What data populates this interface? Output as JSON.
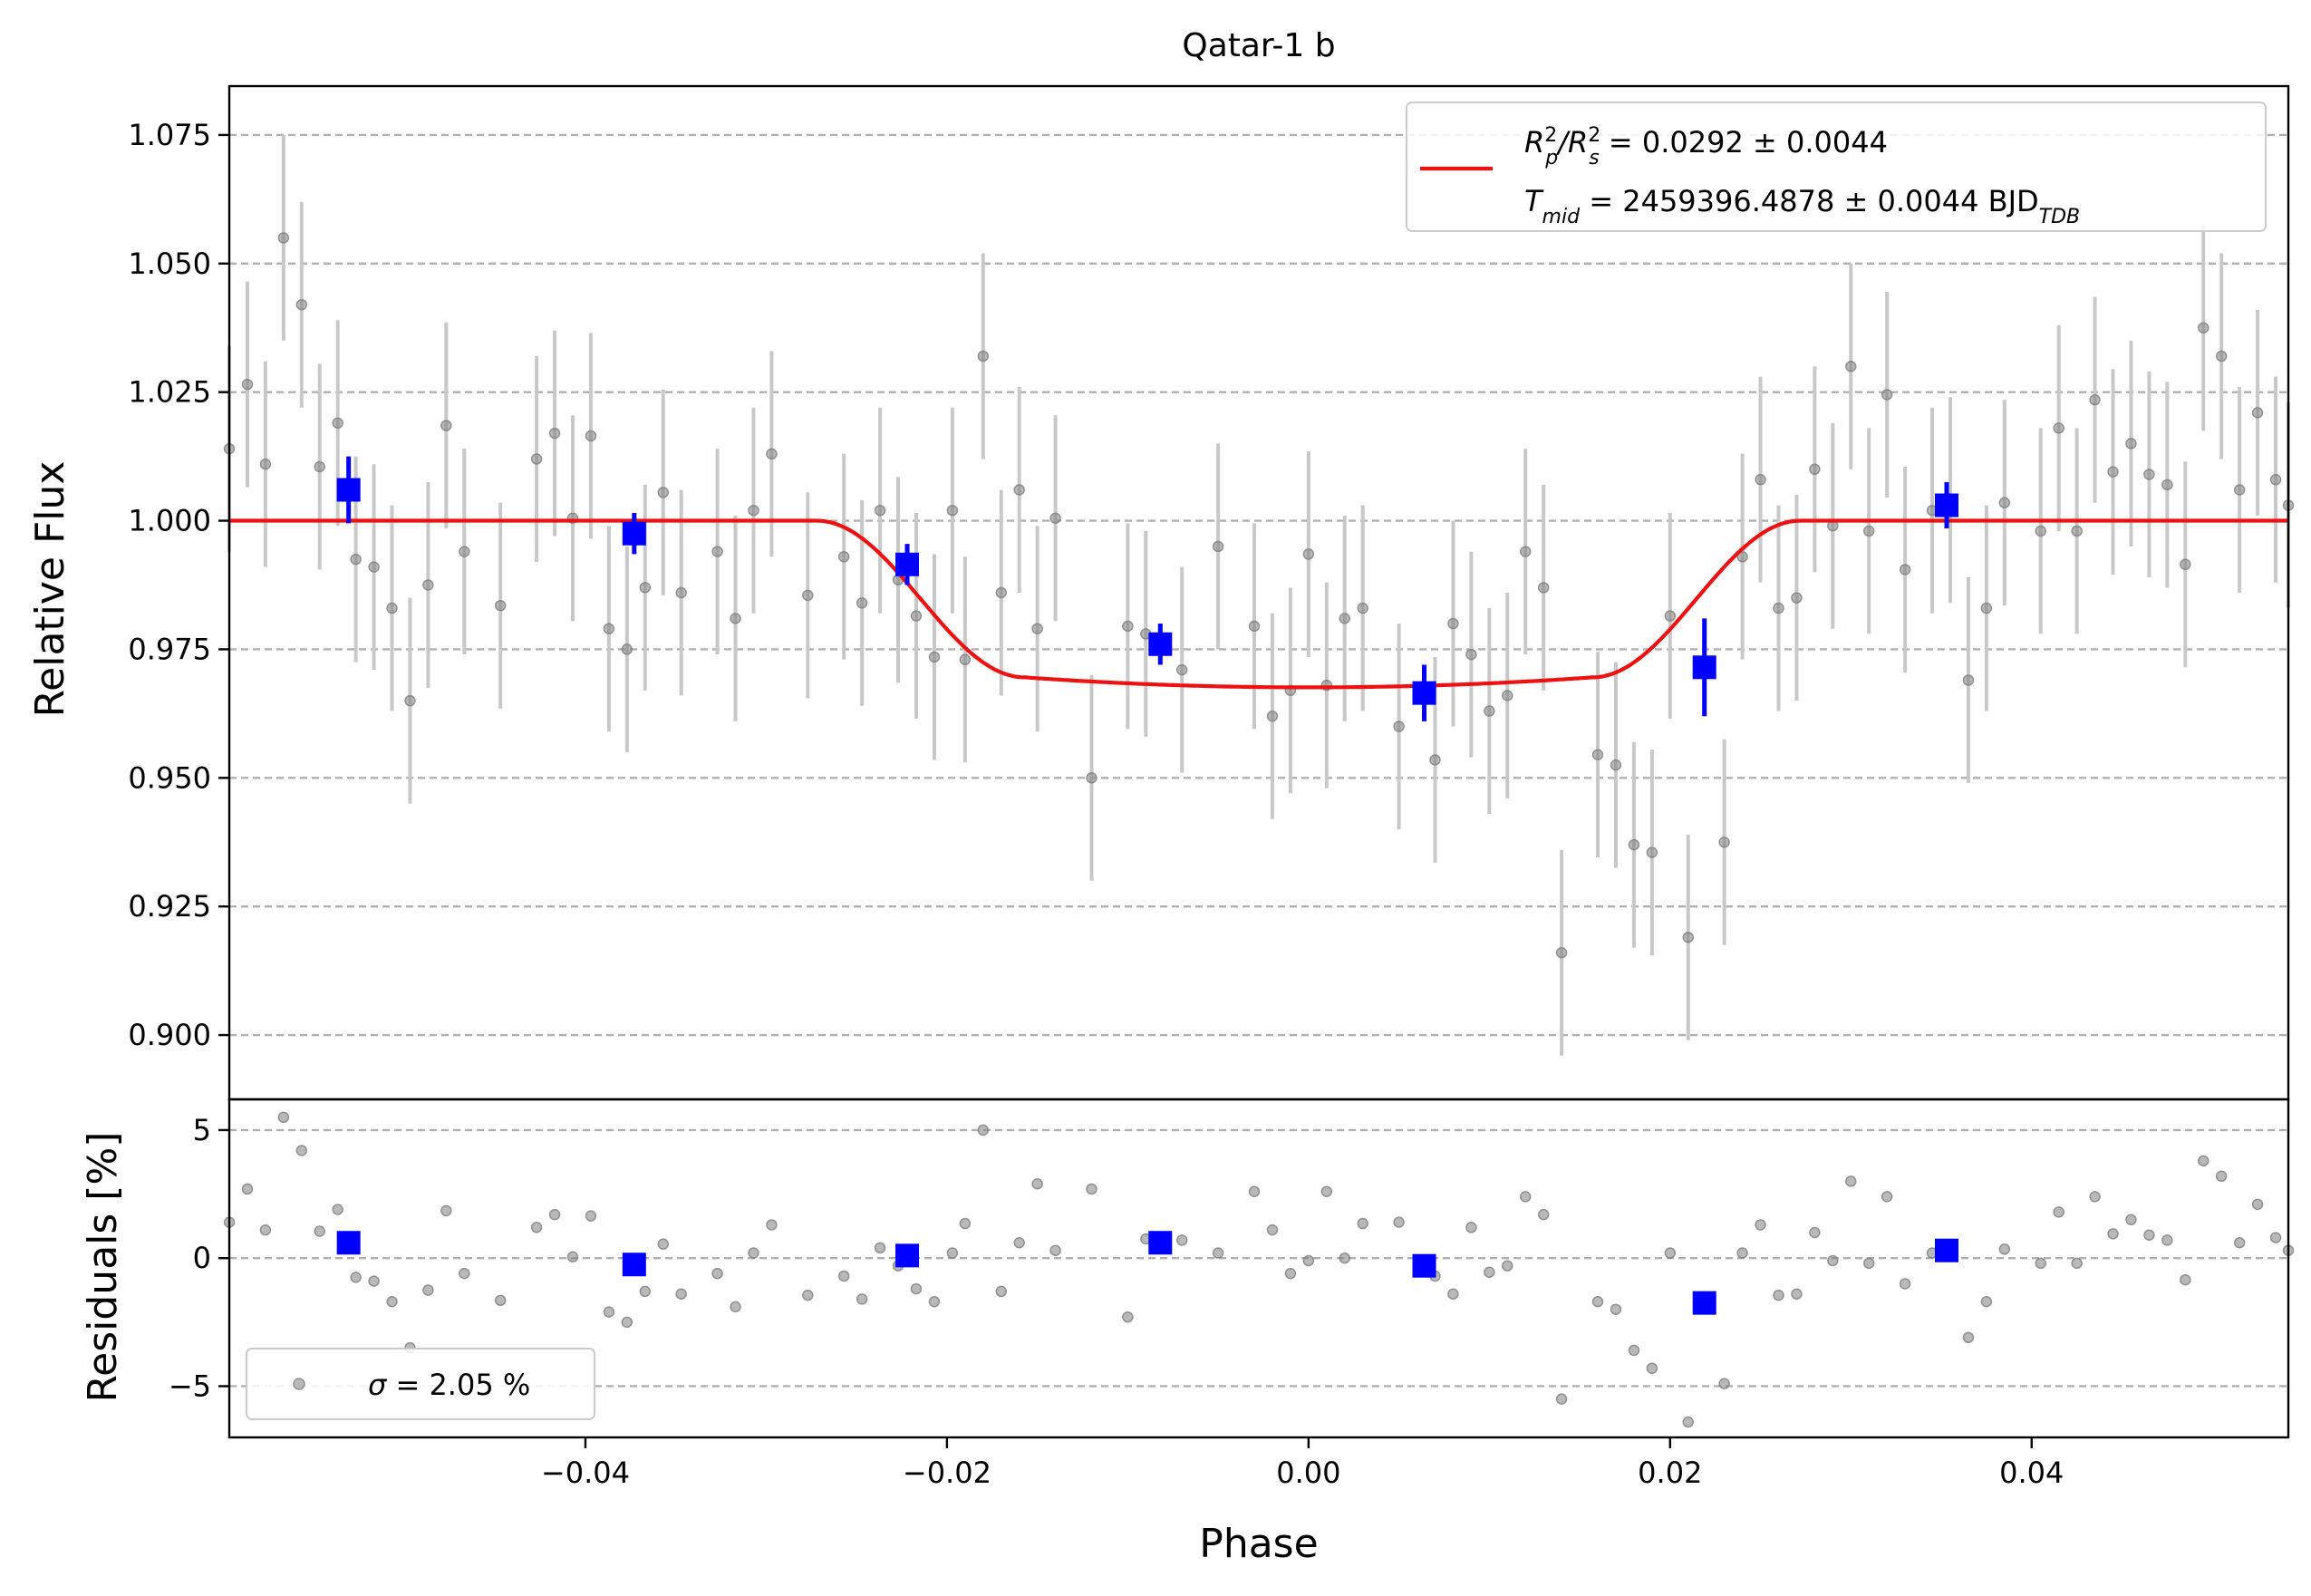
{
  "chart_data": [
    {
      "type": "scatter",
      "panel": "main",
      "title": "Qatar-1 b",
      "xlabel": "Phase",
      "ylabel": "Relative Flux",
      "xlim": [
        -0.0597,
        0.0542
      ],
      "ylim": [
        0.8875,
        1.0845
      ],
      "yticks": [
        0.9,
        0.925,
        0.95,
        0.975,
        1.0,
        1.025,
        1.05,
        1.075
      ],
      "ytick_labels": [
        "0.900",
        "0.925",
        "0.950",
        "0.975",
        "1.000",
        "1.025",
        "1.050",
        "1.075"
      ],
      "grid": "horizontal-dashed",
      "legend": {
        "placement": "top-right",
        "line1_prefix": "R",
        "line1_sub1": "p",
        "line1_sup1": "2",
        "line1_sep": "/R",
        "line1_sub2": "s",
        "line1_sup2": "2",
        "line1_value": " = 0.0292 ± 0.0044",
        "line2_prefix": "T",
        "line2_sub": "mid",
        "line2_value": " = 2459396.4878 ± 0.0044 BJD",
        "line2_unit_sub": "TDB"
      },
      "colors": {
        "raw": "#808080",
        "raw_err": "#c8c8c8",
        "binned": "#0000ff",
        "model": "#ee1111"
      },
      "model": {
        "name": "transit-model",
        "baseline": 1.0,
        "depth": 0.0324,
        "t14_half": 0.0272,
        "ingress": 0.0115
      },
      "series": [
        {
          "name": "raw",
          "x": [
            -0.0597,
            -0.0587,
            -0.0577,
            -0.0567,
            -0.0557,
            -0.0547,
            -0.0537,
            -0.0527,
            -0.0517,
            -0.0507,
            -0.0497,
            -0.0487,
            -0.0477,
            -0.0467,
            -0.0447,
            -0.0427,
            -0.0417,
            -0.0407,
            -0.0397,
            -0.0387,
            -0.0377,
            -0.0367,
            -0.0357,
            -0.0347,
            -0.0327,
            -0.0317,
            -0.0307,
            -0.0297,
            -0.0277,
            -0.0257,
            -0.0247,
            -0.0237,
            -0.0227,
            -0.0217,
            -0.0207,
            -0.0197,
            -0.019,
            -0.018,
            -0.017,
            -0.016,
            -0.015,
            -0.014,
            -0.012,
            -0.01,
            -0.009,
            -0.007,
            -0.005,
            -0.003,
            -0.002,
            -0.001,
            0.0,
            0.001,
            0.002,
            0.003,
            0.005,
            0.007,
            0.008,
            0.009,
            0.01,
            0.011,
            0.012,
            0.013,
            0.014,
            0.016,
            0.017,
            0.018,
            0.019,
            0.02,
            0.021,
            0.023,
            0.024,
            0.025,
            0.026,
            0.027,
            0.028,
            0.029,
            0.03,
            0.031,
            0.032,
            0.033,
            0.0345,
            0.0355,
            0.0365,
            0.0375,
            0.0385,
            0.0405,
            0.0415,
            0.0425,
            0.0435,
            0.0445,
            0.0455,
            0.0465,
            0.0475,
            0.0485,
            0.0495,
            0.0505,
            0.0515,
            0.0525,
            0.0535,
            0.0542
          ],
          "y": [
            1.014,
            1.0265,
            1.011,
            1.055,
            1.042,
            1.0105,
            1.019,
            0.9925,
            0.991,
            0.983,
            0.965,
            0.9875,
            1.0185,
            0.994,
            0.9835,
            1.012,
            1.017,
            1.0005,
            1.0165,
            0.979,
            0.975,
            0.987,
            1.0055,
            0.986,
            0.994,
            0.981,
            1.002,
            1.013,
            0.9855,
            0.993,
            0.984,
            1.002,
            0.9885,
            0.9815,
            0.9735,
            1.002,
            0.973,
            1.032,
            0.986,
            1.006,
            0.979,
            1.0005,
            0.95,
            0.9795,
            0.978,
            0.971,
            0.995,
            0.9795,
            0.962,
            0.967,
            0.9935,
            0.968,
            0.981,
            0.983,
            0.96,
            0.9535,
            0.98,
            0.974,
            0.963,
            0.966,
            0.994,
            0.987,
            0.916,
            0.9545,
            0.9525,
            0.937,
            0.9355,
            0.9815,
            0.919,
            0.9375,
            0.993,
            1.008,
            0.983,
            0.985,
            1.01,
            0.999,
            1.03,
            0.998,
            1.0245,
            0.9905,
            1.002,
            1.004,
            0.969,
            0.983,
            1.0035,
            0.998,
            1.018,
            0.998,
            1.0235,
            1.0095,
            1.015,
            1.009,
            1.007,
            0.9915,
            1.0375,
            1.032,
            1.006,
            1.021,
            1.008,
            1.003
          ],
          "yerr": 0.02
        },
        {
          "name": "binned",
          "x": [
            -0.0531,
            -0.0373,
            -0.0222,
            -0.0082,
            0.0064,
            0.0219,
            0.0353
          ],
          "y": [
            1.006,
            0.9975,
            0.9915,
            0.976,
            0.9665,
            0.9715,
            1.003
          ],
          "yerr": [
            0.0065,
            0.004,
            0.004,
            0.004,
            0.0055,
            0.0095,
            0.0045
          ]
        }
      ]
    },
    {
      "type": "scatter",
      "panel": "residuals",
      "xlabel": "Phase",
      "ylabel": "Residuals [%]",
      "xlim": [
        -0.0597,
        0.0542
      ],
      "ylim": [
        -7.0,
        6.2
      ],
      "xticks": [
        -0.04,
        -0.02,
        0.0,
        0.02,
        0.04
      ],
      "xtick_labels": [
        "−0.04",
        "−0.02",
        "0.00",
        "0.02",
        "0.04"
      ],
      "yticks": [
        -5,
        0,
        5
      ],
      "ytick_labels": [
        "−5",
        "0",
        "5"
      ],
      "grid": "horizontal-dashed",
      "legend": {
        "placement": "bottom-left",
        "sigma_symbol": "σ",
        "sigma_value": " = 2.05 %"
      },
      "series": [
        {
          "name": "raw",
          "x": [
            -0.0597,
            -0.0587,
            -0.0577,
            -0.0567,
            -0.0557,
            -0.0547,
            -0.0537,
            -0.0527,
            -0.0517,
            -0.0507,
            -0.0497,
            -0.0487,
            -0.0477,
            -0.0467,
            -0.0447,
            -0.0427,
            -0.0417,
            -0.0407,
            -0.0397,
            -0.0387,
            -0.0377,
            -0.0367,
            -0.0357,
            -0.0347,
            -0.0327,
            -0.0317,
            -0.0307,
            -0.0297,
            -0.0277,
            -0.0257,
            -0.0247,
            -0.0237,
            -0.0227,
            -0.0217,
            -0.0207,
            -0.0197,
            -0.019,
            -0.018,
            -0.017,
            -0.016,
            -0.015,
            -0.014,
            -0.012,
            -0.01,
            -0.009,
            -0.007,
            -0.005,
            -0.003,
            -0.002,
            -0.001,
            0.0,
            0.001,
            0.002,
            0.003,
            0.005,
            0.007,
            0.008,
            0.009,
            0.01,
            0.011,
            0.012,
            0.013,
            0.014,
            0.016,
            0.017,
            0.018,
            0.019,
            0.02,
            0.021,
            0.023,
            0.024,
            0.025,
            0.026,
            0.027,
            0.028,
            0.029,
            0.03,
            0.031,
            0.032,
            0.033,
            0.0345,
            0.0355,
            0.0365,
            0.0375,
            0.0385,
            0.0405,
            0.0415,
            0.0425,
            0.0435,
            0.0445,
            0.0455,
            0.0465,
            0.0475,
            0.0485,
            0.0495,
            0.0505,
            0.0515,
            0.0525,
            0.0535,
            0.0542
          ],
          "y": [
            1.4,
            2.7,
            1.1,
            5.5,
            4.2,
            1.05,
            1.9,
            -0.75,
            -0.9,
            -1.7,
            -3.5,
            -1.25,
            1.85,
            -0.6,
            -1.65,
            1.2,
            1.7,
            0.05,
            1.65,
            -2.1,
            -2.5,
            -1.3,
            0.55,
            -1.4,
            -0.6,
            -1.9,
            0.2,
            1.3,
            -1.45,
            -0.7,
            -1.6,
            0.4,
            -0.3,
            -1.2,
            -1.7,
            0.2,
            1.35,
            5.0,
            -1.3,
            0.6,
            2.9,
            0.3,
            2.7,
            -2.3,
            0.75,
            0.7,
            0.2,
            2.6,
            1.1,
            -0.6,
            -0.1,
            2.6,
            0.0,
            1.35,
            1.4,
            -0.7,
            -1.4,
            1.2,
            -0.55,
            -0.3,
            2.4,
            1.7,
            -5.5,
            -1.7,
            -2.0,
            -3.6,
            -4.3,
            0.2,
            -6.4,
            -4.9,
            0.2,
            1.3,
            -1.45,
            -1.4,
            1.0,
            -0.1,
            3.0,
            -0.2,
            2.4,
            -1.0,
            0.2,
            0.4,
            -3.1,
            -1.7,
            0.35,
            -0.2,
            1.8,
            -0.2,
            2.4,
            0.95,
            1.5,
            0.9,
            0.7,
            -0.85,
            3.8,
            3.2,
            0.6,
            2.1,
            0.8,
            0.3
          ]
        },
        {
          "name": "binned",
          "x": [
            -0.0531,
            -0.0373,
            -0.0222,
            -0.0082,
            0.0064,
            0.0219,
            0.0353
          ],
          "y": [
            0.6,
            -0.25,
            0.1,
            0.6,
            -0.3,
            -1.75,
            0.3
          ]
        }
      ]
    }
  ]
}
